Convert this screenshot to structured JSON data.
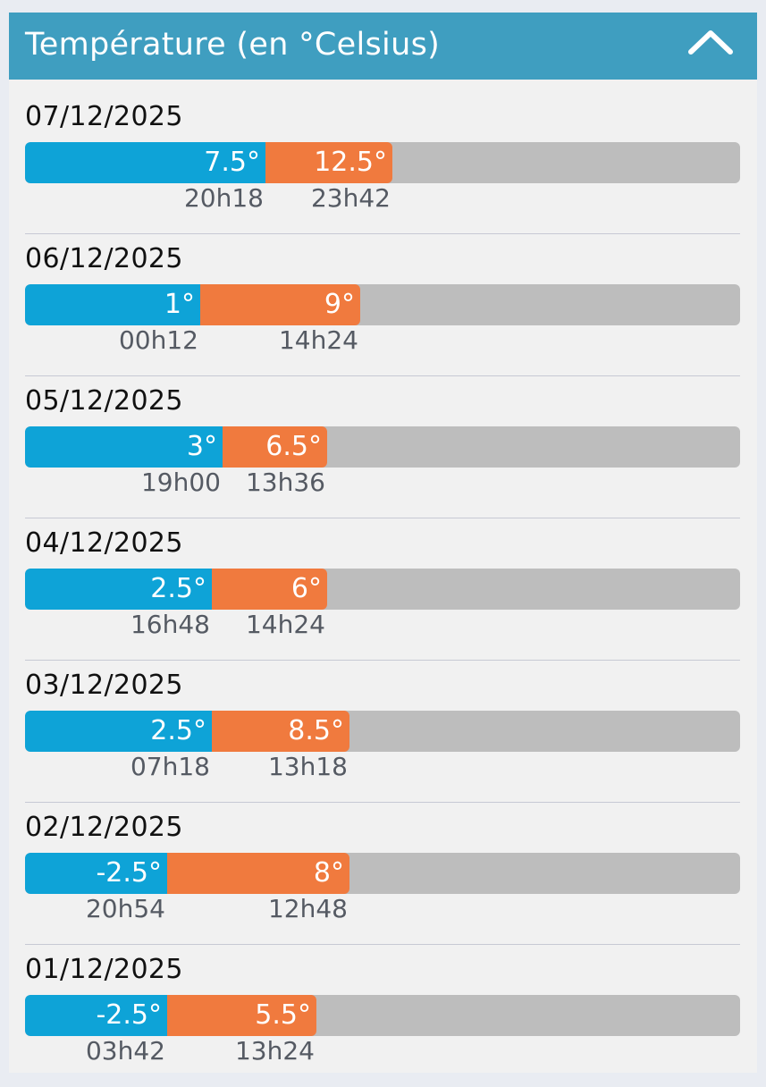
{
  "header": {
    "title": "Température (en °Celsius)",
    "collapse_icon": "chevron-up-icon"
  },
  "colors": {
    "header": "#3f9ec0",
    "min": "#0ea3d7",
    "max": "#f07a3e",
    "track": "#bdbdbd"
  },
  "days": [
    {
      "date": "07/12/2025",
      "min": "7.5°",
      "min_time": "20h18",
      "max": "12.5°",
      "max_time": "23h42",
      "min_fraction": 0.336,
      "max_fraction": 0.514
    },
    {
      "date": "06/12/2025",
      "min": "1°",
      "min_time": "00h12",
      "max": "9°",
      "max_time": "14h24",
      "min_fraction": 0.245,
      "max_fraction": 0.469
    },
    {
      "date": "05/12/2025",
      "min": "3°",
      "min_time": "19h00",
      "max": "6.5°",
      "max_time": "13h36",
      "min_fraction": 0.276,
      "max_fraction": 0.423
    },
    {
      "date": "04/12/2025",
      "min": "2.5°",
      "min_time": "16h48",
      "max": "6°",
      "max_time": "14h24",
      "min_fraction": 0.261,
      "max_fraction": 0.423
    },
    {
      "date": "03/12/2025",
      "min": "2.5°",
      "min_time": "07h18",
      "max": "8.5°",
      "max_time": "13h18",
      "min_fraction": 0.261,
      "max_fraction": 0.454
    },
    {
      "date": "02/12/2025",
      "min": "-2.5°",
      "min_time": "20h54",
      "max": "8°",
      "max_time": "12h48",
      "min_fraction": 0.199,
      "max_fraction": 0.454
    },
    {
      "date": "01/12/2025",
      "min": "-2.5°",
      "min_time": "03h42",
      "max": "5.5°",
      "max_time": "13h24",
      "min_fraction": 0.199,
      "max_fraction": 0.408
    }
  ]
}
